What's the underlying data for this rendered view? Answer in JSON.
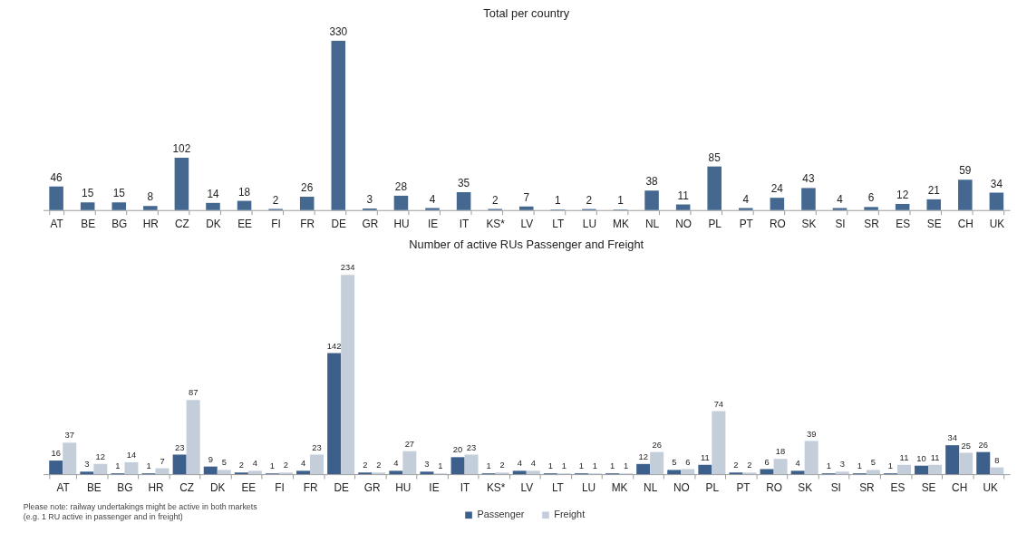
{
  "chart_data": [
    {
      "type": "bar",
      "title": "Total per country",
      "categories": [
        "AT",
        "BE",
        "BG",
        "HR",
        "CZ",
        "DK",
        "EE",
        "FI",
        "FR",
        "DE",
        "GR",
        "HU",
        "IE",
        "IT",
        "KS*",
        "LV",
        "LT",
        "LU",
        "MK",
        "NL",
        "NO",
        "PL",
        "PT",
        "RO",
        "SK",
        "SI",
        "SR",
        "ES",
        "SE",
        "CH",
        "UK"
      ],
      "values": [
        46,
        15,
        15,
        8,
        102,
        14,
        18,
        2,
        26,
        330,
        3,
        28,
        4,
        35,
        2,
        7,
        1,
        2,
        1,
        38,
        11,
        85,
        4,
        24,
        43,
        4,
        6,
        12,
        21,
        59,
        34
      ],
      "color": "#44688f",
      "data_labels": true
    },
    {
      "type": "bar",
      "title": "Number of active RUs Passenger and Freight",
      "categories": [
        "AT",
        "BE",
        "BG",
        "HR",
        "CZ",
        "DK",
        "EE",
        "FI",
        "FR",
        "DE",
        "GR",
        "HU",
        "IE",
        "IT",
        "KS*",
        "LV",
        "LT",
        "LU",
        "MK",
        "NL",
        "NO",
        "PL",
        "PT",
        "RO",
        "SK",
        "SI",
        "SR",
        "ES",
        "SE",
        "CH",
        "UK"
      ],
      "series": [
        {
          "name": "Passenger",
          "color": "#3d5f8b",
          "values": [
            16,
            3,
            1,
            1,
            23,
            9,
            2,
            1,
            4,
            142,
            2,
            4,
            3,
            20,
            1,
            4,
            1,
            1,
            1,
            12,
            5,
            11,
            2,
            6,
            4,
            1,
            1,
            1,
            10,
            34,
            26
          ]
        },
        {
          "name": "Freight",
          "color": "#c4cedb",
          "values": [
            37,
            12,
            14,
            7,
            87,
            5,
            4,
            2,
            23,
            234,
            2,
            27,
            1,
            23,
            2,
            4,
            1,
            1,
            1,
            26,
            6,
            74,
            2,
            18,
            39,
            3,
            5,
            11,
            11,
            25,
            8
          ]
        }
      ],
      "data_labels": true,
      "legend": "bottom",
      "annotations": [
        "Please note: railway undertakings might be active in both markets",
        "(e.g. 1 RU active in passenger and in freight)"
      ]
    }
  ]
}
